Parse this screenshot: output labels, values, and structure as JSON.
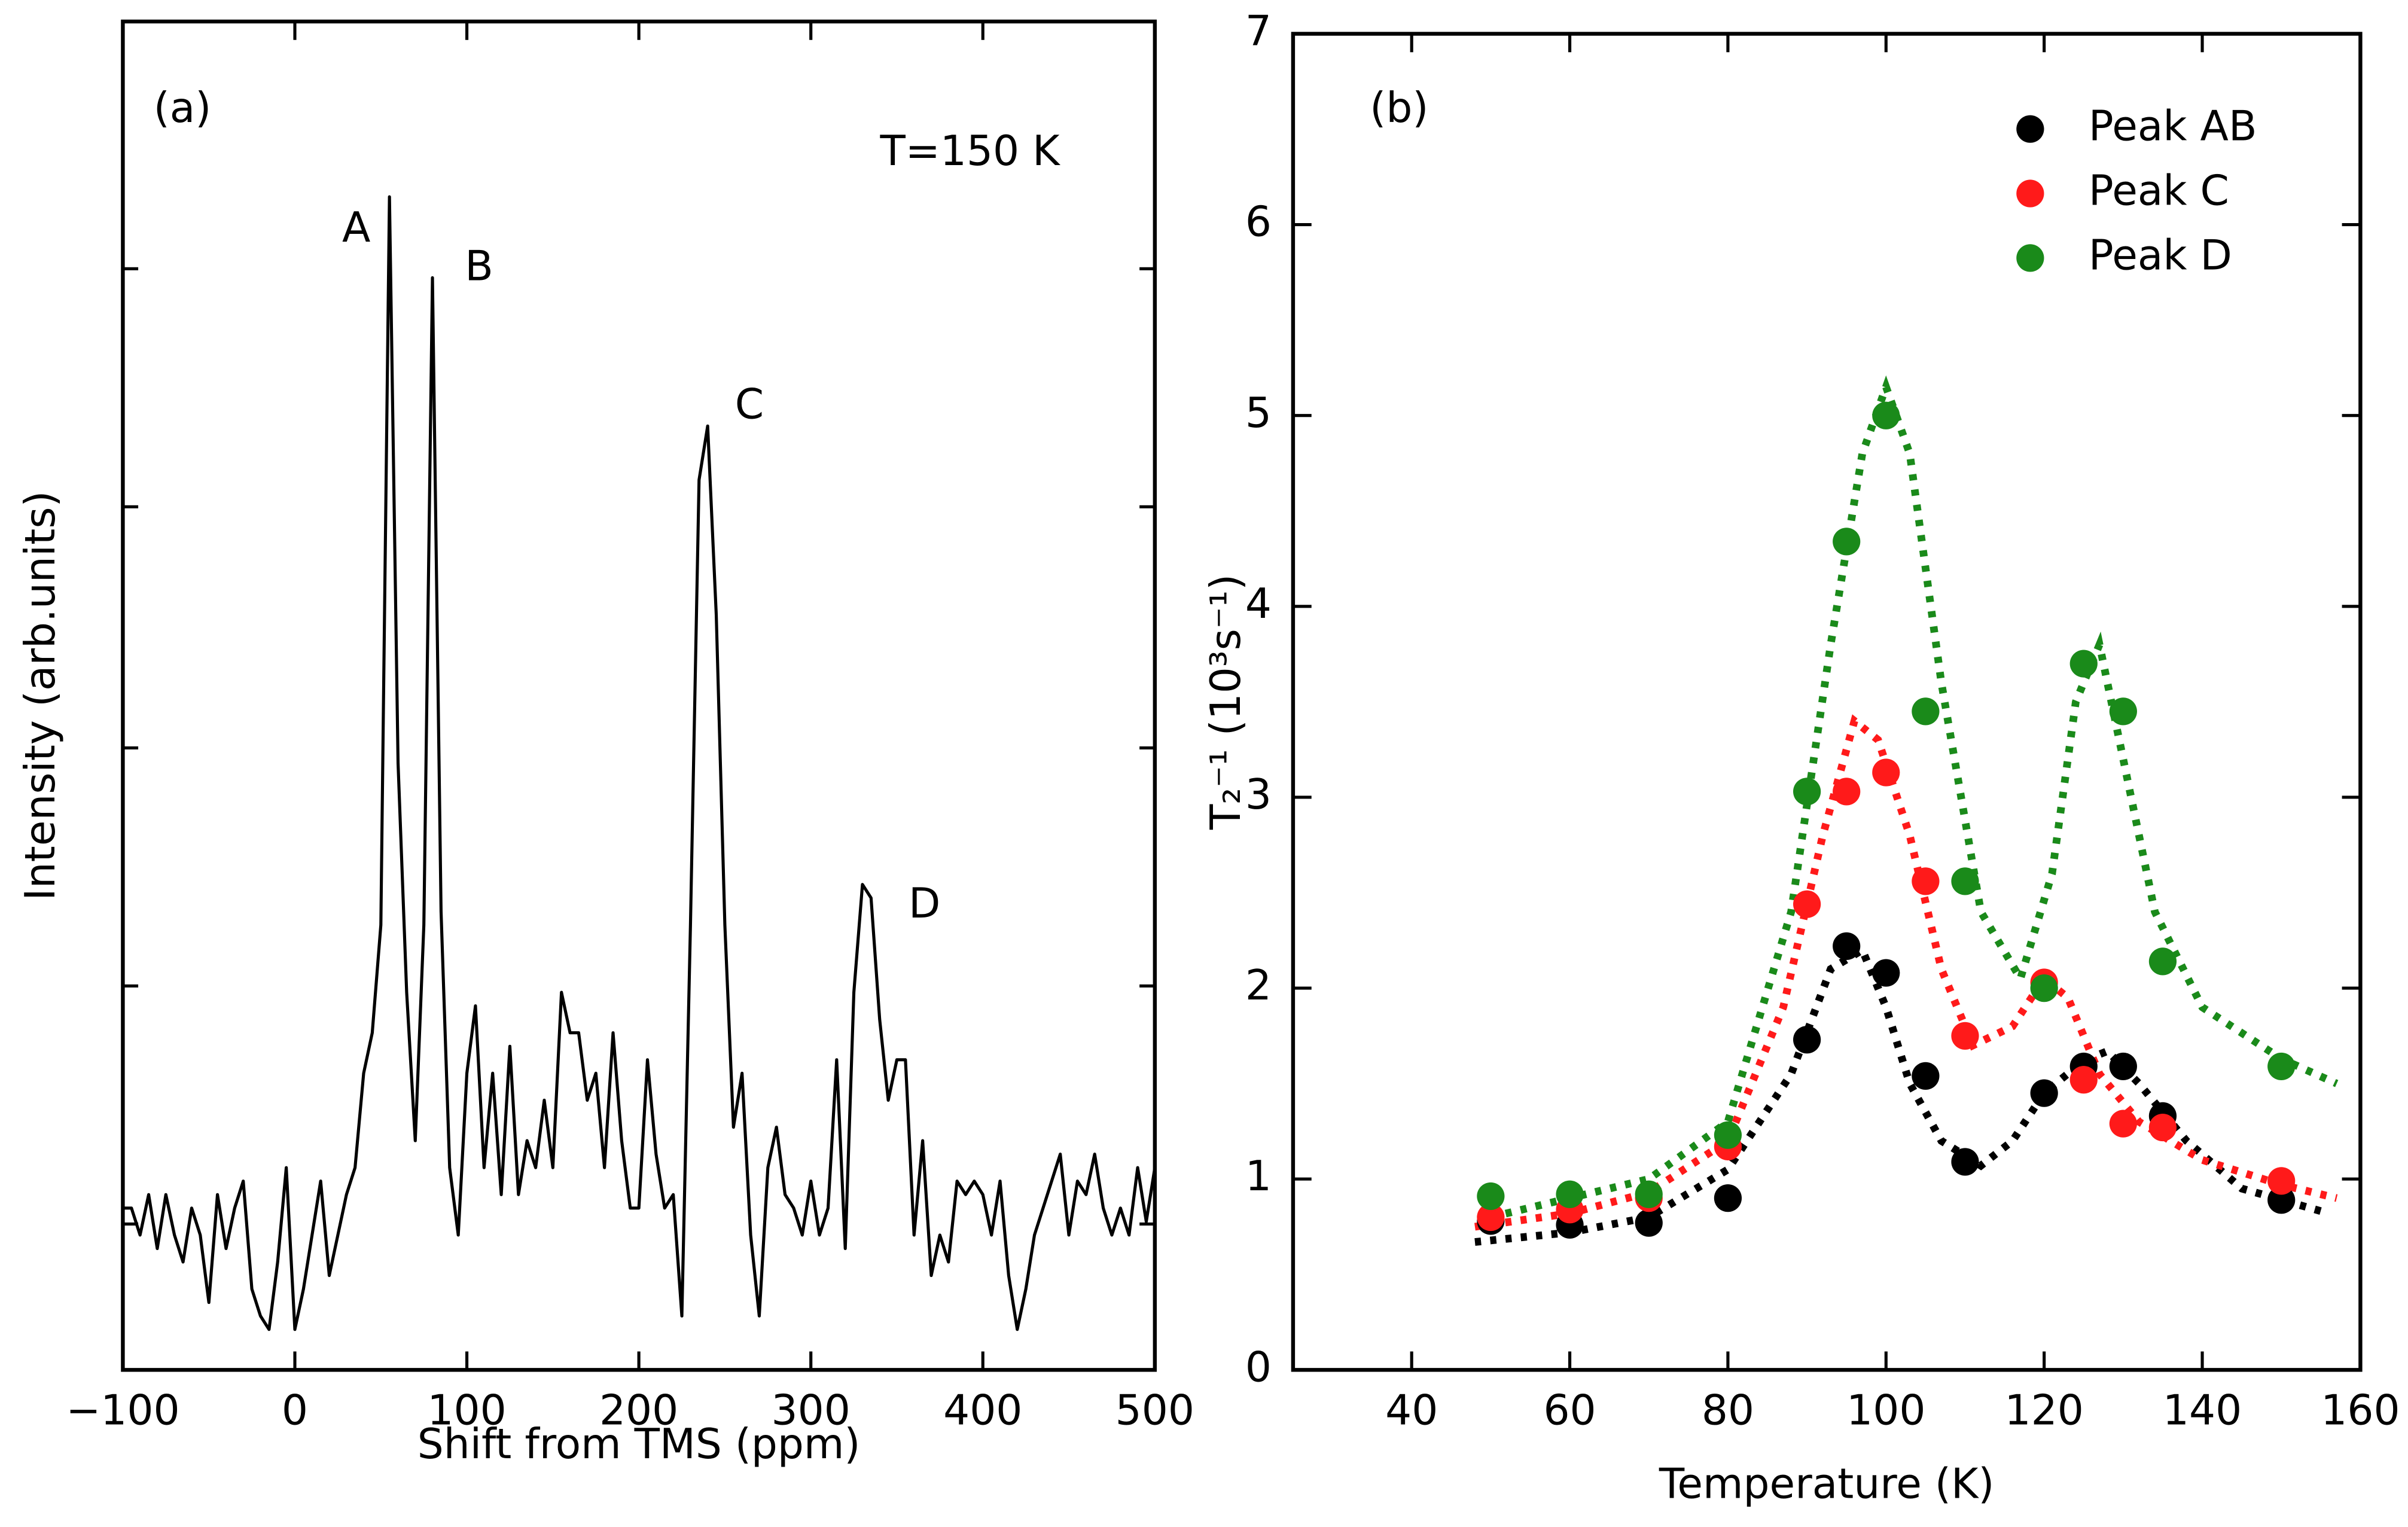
{
  "chart_data": [
    {
      "type": "line",
      "xlabel": "Shift from TMS (ppm)",
      "ylabel": "Intensity (arb.units)",
      "annotations": [
        "(a)",
        "T=150 K",
        "A",
        "B",
        "C",
        "D"
      ],
      "xlim": [
        -100,
        500
      ],
      "ylim": [
        0,
        1
      ],
      "xticks": [
        {
          "value": -100,
          "label": "−100"
        },
        0,
        100,
        200,
        300,
        400,
        500
      ],
      "color": "#000000",
      "x": [
        -100,
        -95,
        -90,
        -85,
        -80,
        -75,
        -70,
        -65,
        -60,
        -55,
        -50,
        -45,
        -40,
        -35,
        -30,
        -25,
        -20,
        -15,
        -10,
        -5,
        0,
        5,
        10,
        15,
        20,
        25,
        30,
        35,
        40,
        45,
        50,
        55,
        60,
        65,
        70,
        75,
        80,
        85,
        90,
        95,
        100,
        105,
        110,
        115,
        120,
        125,
        130,
        135,
        140,
        145,
        150,
        155,
        160,
        165,
        170,
        175,
        180,
        185,
        190,
        195,
        200,
        205,
        210,
        215,
        220,
        225,
        230,
        235,
        240,
        245,
        250,
        255,
        260,
        265,
        270,
        275,
        280,
        285,
        290,
        295,
        300,
        305,
        310,
        315,
        320,
        325,
        330,
        335,
        340,
        345,
        350,
        355,
        360,
        365,
        370,
        375,
        380,
        385,
        390,
        395,
        400,
        405,
        410,
        415,
        420,
        425,
        430,
        435,
        440,
        445,
        450,
        455,
        460,
        465,
        470,
        475,
        480,
        485,
        490,
        495,
        500
      ],
      "values": [
        0.12,
        0.12,
        0.1,
        0.13,
        0.09,
        0.13,
        0.1,
        0.08,
        0.12,
        0.1,
        0.05,
        0.13,
        0.09,
        0.12,
        0.14,
        0.06,
        0.04,
        0.03,
        0.08,
        0.15,
        0.03,
        0.06,
        0.1,
        0.14,
        0.07,
        0.1,
        0.13,
        0.15,
        0.22,
        0.25,
        0.33,
        0.87,
        0.45,
        0.28,
        0.17,
        0.33,
        0.81,
        0.34,
        0.15,
        0.1,
        0.22,
        0.27,
        0.15,
        0.22,
        0.13,
        0.24,
        0.13,
        0.17,
        0.15,
        0.2,
        0.15,
        0.28,
        0.25,
        0.25,
        0.2,
        0.22,
        0.15,
        0.25,
        0.17,
        0.12,
        0.12,
        0.23,
        0.16,
        0.12,
        0.13,
        0.04,
        0.33,
        0.66,
        0.7,
        0.56,
        0.33,
        0.18,
        0.22,
        0.1,
        0.04,
        0.15,
        0.18,
        0.13,
        0.12,
        0.1,
        0.14,
        0.1,
        0.12,
        0.23,
        0.09,
        0.28,
        0.36,
        0.35,
        0.26,
        0.2,
        0.23,
        0.23,
        0.1,
        0.17,
        0.07,
        0.1,
        0.08,
        0.14,
        0.13,
        0.14,
        0.13,
        0.1,
        0.14,
        0.07,
        0.03,
        0.06,
        0.1,
        0.12,
        0.14,
        0.16,
        0.1,
        0.14,
        0.13,
        0.16,
        0.12,
        0.1,
        0.12,
        0.1,
        0.15,
        0.11,
        0.15
      ]
    },
    {
      "type": "scatter",
      "xlabel": "Temperature (K)",
      "ylabel": "T₂⁻¹ (10³s⁻¹)",
      "annotations": [
        "(b)"
      ],
      "xlim": [
        25,
        160
      ],
      "ylim": [
        0,
        7
      ],
      "xticks": [
        40,
        60,
        80,
        100,
        120,
        140,
        160
      ],
      "yticks": [
        0,
        1,
        2,
        3,
        4,
        5,
        6,
        7
      ],
      "legend": "upper right",
      "x": [
        50,
        60,
        70,
        80,
        90,
        95,
        100,
        105,
        110,
        120,
        125,
        130,
        135,
        150
      ],
      "series": [
        {
          "name": "Peak AB",
          "color": "#000000",
          "values": [
            0.78,
            0.76,
            0.77,
            0.9,
            1.73,
            2.22,
            2.08,
            1.54,
            1.09,
            1.45,
            1.59,
            1.59,
            1.33,
            0.89
          ],
          "fit": {
            "x": [
              48,
              60,
              70,
              80,
              88,
              93,
              97,
              100,
              103,
              107,
              112,
              116,
              120,
              125,
              128,
              132,
              138,
              145,
              156
            ],
            "values": [
              0.67,
              0.72,
              0.8,
              1.05,
              1.55,
              2.1,
              2.2,
              1.9,
              1.5,
              1.2,
              1.07,
              1.2,
              1.45,
              1.62,
              1.67,
              1.5,
              1.2,
              0.95,
              0.82
            ]
          }
        },
        {
          "name": "Peak C",
          "color": "#ff1a1a",
          "values": [
            0.8,
            0.84,
            0.9,
            1.17,
            2.44,
            3.03,
            3.13,
            2.56,
            1.75,
            2.03,
            1.52,
            1.29,
            1.27,
            0.99
          ],
          "fit": {
            "x": [
              48,
              60,
              70,
              80,
              87,
              92,
              96,
              99,
              103,
              107,
              111,
              116,
              120,
              123,
              127,
              132,
              140,
              150,
              157
            ],
            "values": [
              0.75,
              0.82,
              0.93,
              1.2,
              1.9,
              2.8,
              3.4,
              3.3,
              2.8,
              2.1,
              1.7,
              1.8,
              2.05,
              1.95,
              1.55,
              1.3,
              1.1,
              0.97,
              0.9
            ]
          }
        },
        {
          "name": "Peak D",
          "color": "#1a8a1a",
          "values": [
            0.91,
            0.92,
            0.92,
            1.23,
            3.03,
            4.34,
            5.0,
            3.45,
            2.56,
            2.0,
            3.7,
            3.45,
            2.14,
            1.59
          ],
          "fit": {
            "x": [
              50,
              60,
              70,
              80,
              88,
              93,
              97,
              100,
              103,
              107,
              112,
              117,
              121,
              124,
              127,
              130,
              134,
              140,
              150,
              157
            ],
            "values": [
              0.8,
              0.9,
              1.0,
              1.3,
              2.4,
              3.8,
              4.8,
              5.15,
              4.8,
              3.6,
              2.4,
              2.05,
              2.6,
              3.5,
              3.8,
              3.2,
              2.4,
              1.9,
              1.63,
              1.5
            ]
          }
        }
      ]
    }
  ]
}
